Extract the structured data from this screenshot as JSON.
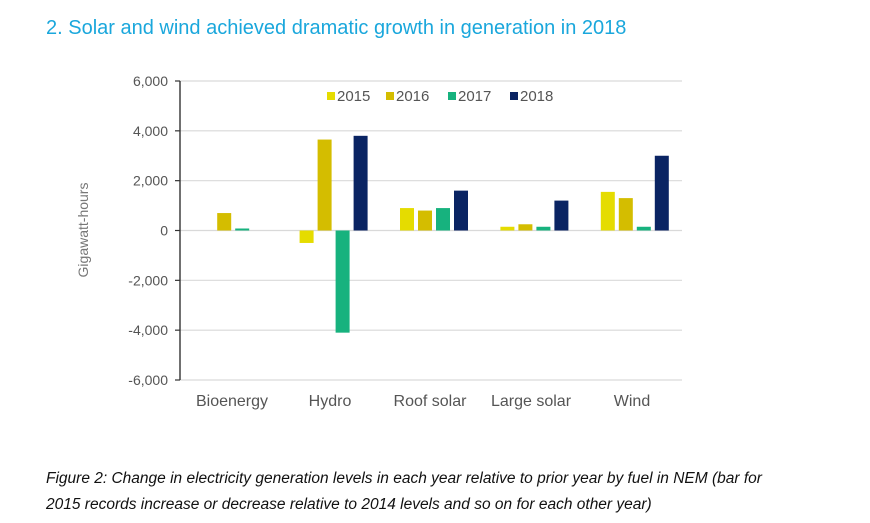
{
  "header": {
    "title": "2. Solar and wind achieved dramatic growth in generation in 2018"
  },
  "caption": {
    "line1": "Figure 2: Change in electricity generation levels in each year relative to prior year by fuel in NEM (bar for",
    "line2": "2015 records increase or decrease relative to 2014 levels and so on for each other year)"
  },
  "chart_data": {
    "type": "bar",
    "title": "2. Solar and wind achieved dramatic growth in generation in 2018",
    "xlabel": "",
    "ylabel": "Gigawatt-hours",
    "ylim": [
      -6000,
      6000
    ],
    "yticks": [
      6000,
      4000,
      2000,
      0,
      -2000,
      -4000,
      -6000
    ],
    "ytick_labels": [
      "6,000",
      "4,000",
      "2,000",
      "0",
      "-2,000",
      "-4,000",
      "-6,000"
    ],
    "grid": true,
    "legend_position": "top-center",
    "categories": [
      "Bioenergy",
      "Hydro",
      "Roof solar",
      "Large solar",
      "Wind"
    ],
    "series": [
      {
        "name": "2015",
        "color": "#e5dc00",
        "values": [
          0,
          -500,
          900,
          150,
          1550
        ]
      },
      {
        "name": "2016",
        "color": "#d4bd00",
        "values": [
          700,
          3650,
          800,
          250,
          1300
        ]
      },
      {
        "name": "2017",
        "color": "#17b27e",
        "values": [
          80,
          -4100,
          900,
          150,
          150
        ]
      },
      {
        "name": "2018",
        "color": "#0a2463",
        "values": [
          0,
          3800,
          1600,
          1200,
          3000
        ]
      }
    ]
  }
}
